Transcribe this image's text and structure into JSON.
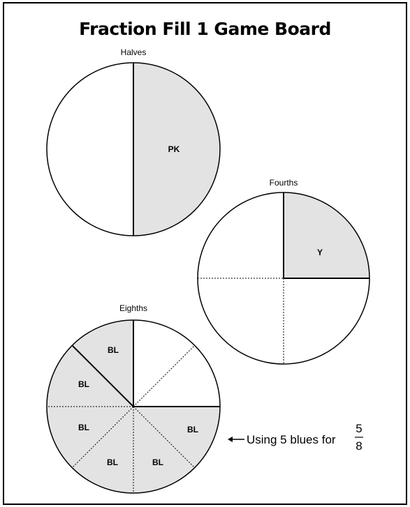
{
  "title": "Fraction Fill 1 Game Board",
  "colors": {
    "filled": "#e3e3e3",
    "empty": "#ffffff",
    "line": "#000000"
  },
  "circles": {
    "halves": {
      "label": "Halves",
      "pieces": [
        {
          "text": "PK",
          "filled": true
        },
        {
          "text": "",
          "filled": false
        }
      ]
    },
    "fourths": {
      "label": "Fourths",
      "pieces": [
        {
          "text": "Y",
          "filled": true
        },
        {
          "text": "",
          "filled": false
        },
        {
          "text": "",
          "filled": false
        },
        {
          "text": "",
          "filled": false
        }
      ]
    },
    "eighths": {
      "label": "Eighths",
      "pieces": [
        {
          "text": "BL",
          "filled": true
        },
        {
          "text": "BL",
          "filled": true
        },
        {
          "text": "BL",
          "filled": true
        },
        {
          "text": "BL",
          "filled": true
        },
        {
          "text": "BL",
          "filled": true
        },
        {
          "text": "BL",
          "filled": true
        },
        {
          "text": "",
          "filled": false
        },
        {
          "text": "",
          "filled": false
        }
      ]
    }
  },
  "annotation": {
    "arrow": "←",
    "text": "Using 5 blues for",
    "numerator": "5",
    "denominator": "8"
  }
}
